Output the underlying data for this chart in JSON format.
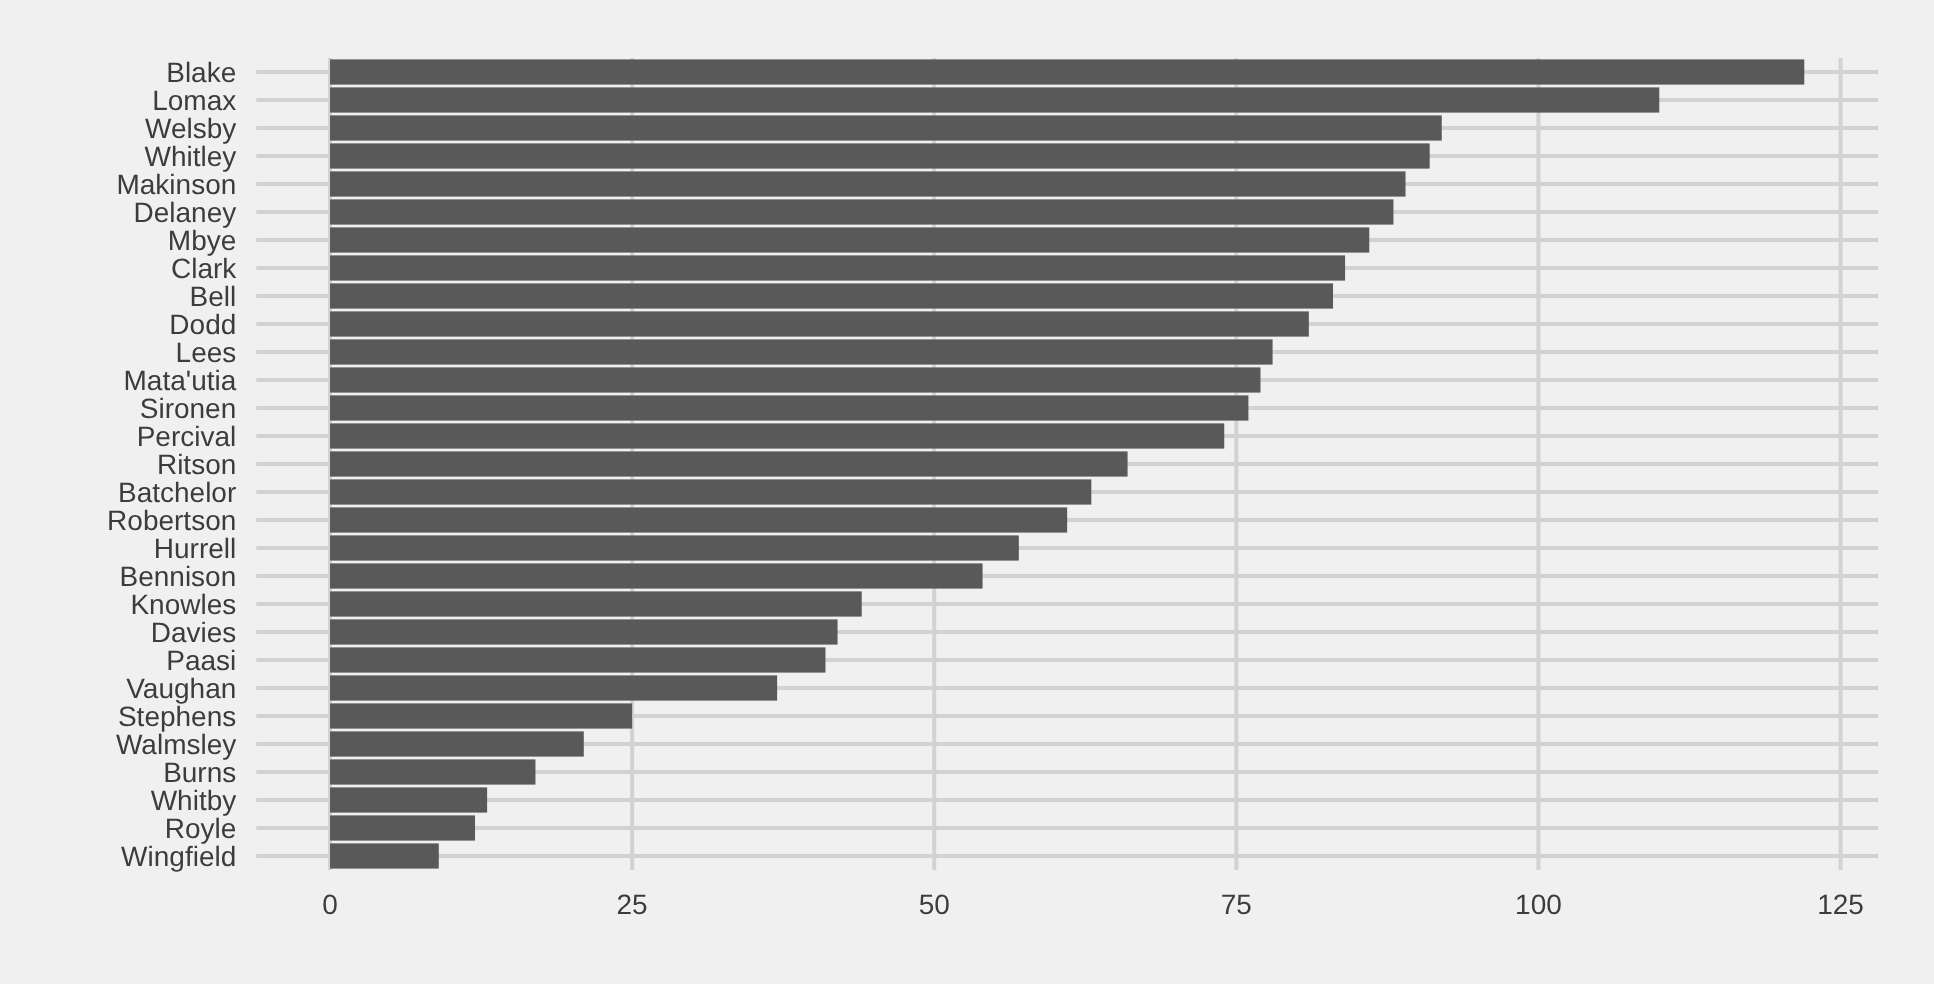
{
  "chart_data": {
    "type": "bar",
    "orientation": "horizontal",
    "categories": [
      "Blake",
      "Lomax",
      "Welsby",
      "Whitley",
      "Makinson",
      "Delaney",
      "Mbye",
      "Clark",
      "Bell",
      "Dodd",
      "Lees",
      "Mata'utia",
      "Sironen",
      "Percival",
      "Ritson",
      "Batchelor",
      "Robertson",
      "Hurrell",
      "Bennison",
      "Knowles",
      "Davies",
      "Paasi",
      "Vaughan",
      "Stephens",
      "Walmsley",
      "Burns",
      "Whitby",
      "Royle",
      "Wingfield"
    ],
    "values": [
      122,
      110,
      92,
      91,
      89,
      88,
      86,
      84,
      83,
      81,
      78,
      77,
      76,
      74,
      66,
      63,
      61,
      57,
      54,
      44,
      42,
      41,
      37,
      25,
      21,
      17,
      13,
      12,
      9
    ],
    "color": "#595959",
    "xlim": [
      -6.1,
      128.1
    ],
    "xticks": [
      0,
      25,
      50,
      75,
      100,
      125
    ],
    "grid": true
  }
}
